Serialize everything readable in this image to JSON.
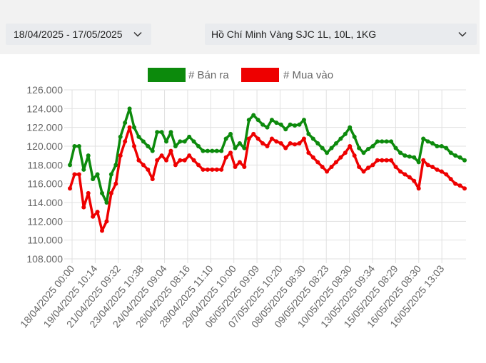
{
  "filters": {
    "date_range": "18/04/2025 - 17/05/2025",
    "product": "Hồ Chí Minh Vàng SJC 1L, 10L, 1KG",
    "chevron_icon": "chevron-down-icon"
  },
  "chart_data": {
    "type": "line",
    "legend_position": "top",
    "grid": true,
    "ylim": [
      108000,
      126000
    ],
    "ytick_values": [
      108000,
      110000,
      112000,
      114000,
      116000,
      118000,
      120000,
      122000,
      124000,
      126000
    ],
    "ytick_labels": [
      "108.000",
      "110.000",
      "112.000",
      "114.000",
      "116.000",
      "118.000",
      "120.000",
      "122.000",
      "124.000",
      "126.000"
    ],
    "x_tick_labels": [
      "18/04/2025 00:00",
      "19/04/2025 10:14",
      "21/04/2025 09:32",
      "23/04/2025 10:38",
      "24/04/2025 09:04",
      "26/04/2025 08:16",
      "28/04/2025 11:10",
      "29/04/2025 10:00",
      "06/05/2025 09:09",
      "07/05/2025 10:20",
      "08/05/2025 08:30",
      "09/05/2025 08:23",
      "10/05/2025 08:30",
      "13/05/2025 09:34",
      "15/05/2025 08:29",
      "16/05/2025 08:30",
      "16/05/2025 13:03"
    ],
    "series": [
      {
        "name": "# Bán ra",
        "color": "#0c8a0c",
        "values": [
          118000,
          120000,
          120000,
          117500,
          119000,
          116500,
          117000,
          115000,
          114000,
          117000,
          118000,
          121000,
          122500,
          124000,
          122000,
          121000,
          120500,
          120000,
          119500,
          121500,
          121500,
          120500,
          121500,
          120000,
          120500,
          120500,
          121000,
          120500,
          120000,
          119500,
          119500,
          119500,
          119500,
          119500,
          120800,
          121300,
          119800,
          120300,
          119800,
          122800,
          123300,
          122800,
          122300,
          122000,
          122800,
          122500,
          122300,
          121800,
          122300,
          122200,
          122300,
          122800,
          121300,
          120800,
          120300,
          119800,
          119300,
          119800,
          120300,
          120800,
          121300,
          122000,
          121000,
          119800,
          119300,
          119700,
          120000,
          120500,
          120500,
          120500,
          120500,
          119800,
          119300,
          119000,
          118900,
          118800,
          118300,
          120800,
          120500,
          120300,
          120000,
          120000,
          119800,
          119300,
          119000,
          118800,
          118500
        ]
      },
      {
        "name": "# Mua vào",
        "color": "#ee0000",
        "values": [
          115500,
          117000,
          117000,
          113500,
          115000,
          112500,
          113000,
          111000,
          112000,
          115000,
          116000,
          119000,
          120500,
          122000,
          120000,
          118500,
          118000,
          117500,
          116500,
          118500,
          119000,
          118500,
          119500,
          118000,
          118500,
          118500,
          119000,
          118500,
          118000,
          117500,
          117500,
          117500,
          117500,
          117500,
          118800,
          119300,
          117800,
          118300,
          117800,
          120800,
          121300,
          120800,
          120300,
          120000,
          120800,
          120500,
          120300,
          119800,
          120300,
          120200,
          120300,
          120800,
          119300,
          118800,
          118300,
          117800,
          117300,
          117800,
          118300,
          118800,
          119300,
          120000,
          119000,
          117800,
          117300,
          117700,
          118000,
          118500,
          118500,
          118500,
          118500,
          117800,
          117300,
          117000,
          116700,
          116300,
          115500,
          118500,
          118000,
          117800,
          117500,
          117300,
          117000,
          116500,
          116000,
          115800,
          115500
        ]
      }
    ]
  }
}
